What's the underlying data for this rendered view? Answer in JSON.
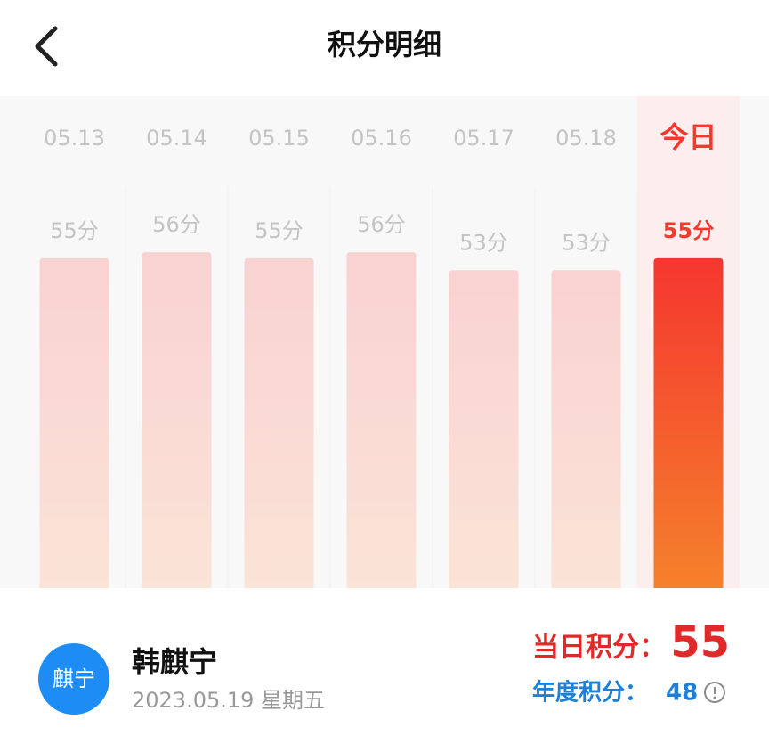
{
  "header": {
    "title": "积分明细"
  },
  "chart_data": {
    "type": "bar",
    "categories": [
      "05.13",
      "05.14",
      "05.15",
      "05.16",
      "05.17",
      "05.18",
      "今日"
    ],
    "values": [
      55,
      56,
      55,
      56,
      53,
      53,
      55
    ],
    "value_labels": [
      "55分",
      "56分",
      "55分",
      "56分",
      "53分",
      "53分",
      "55分"
    ],
    "color": "#f8d4d3",
    "highlight_color": "#f5392f"
  },
  "summary": {
    "avatar": "麒宁",
    "name": "韩麒宁",
    "date": "2023.05.19 星期五",
    "daily_label": "当日积分：",
    "daily_value": 55,
    "annual_label": "年度积分：",
    "annual_value": 48
  }
}
